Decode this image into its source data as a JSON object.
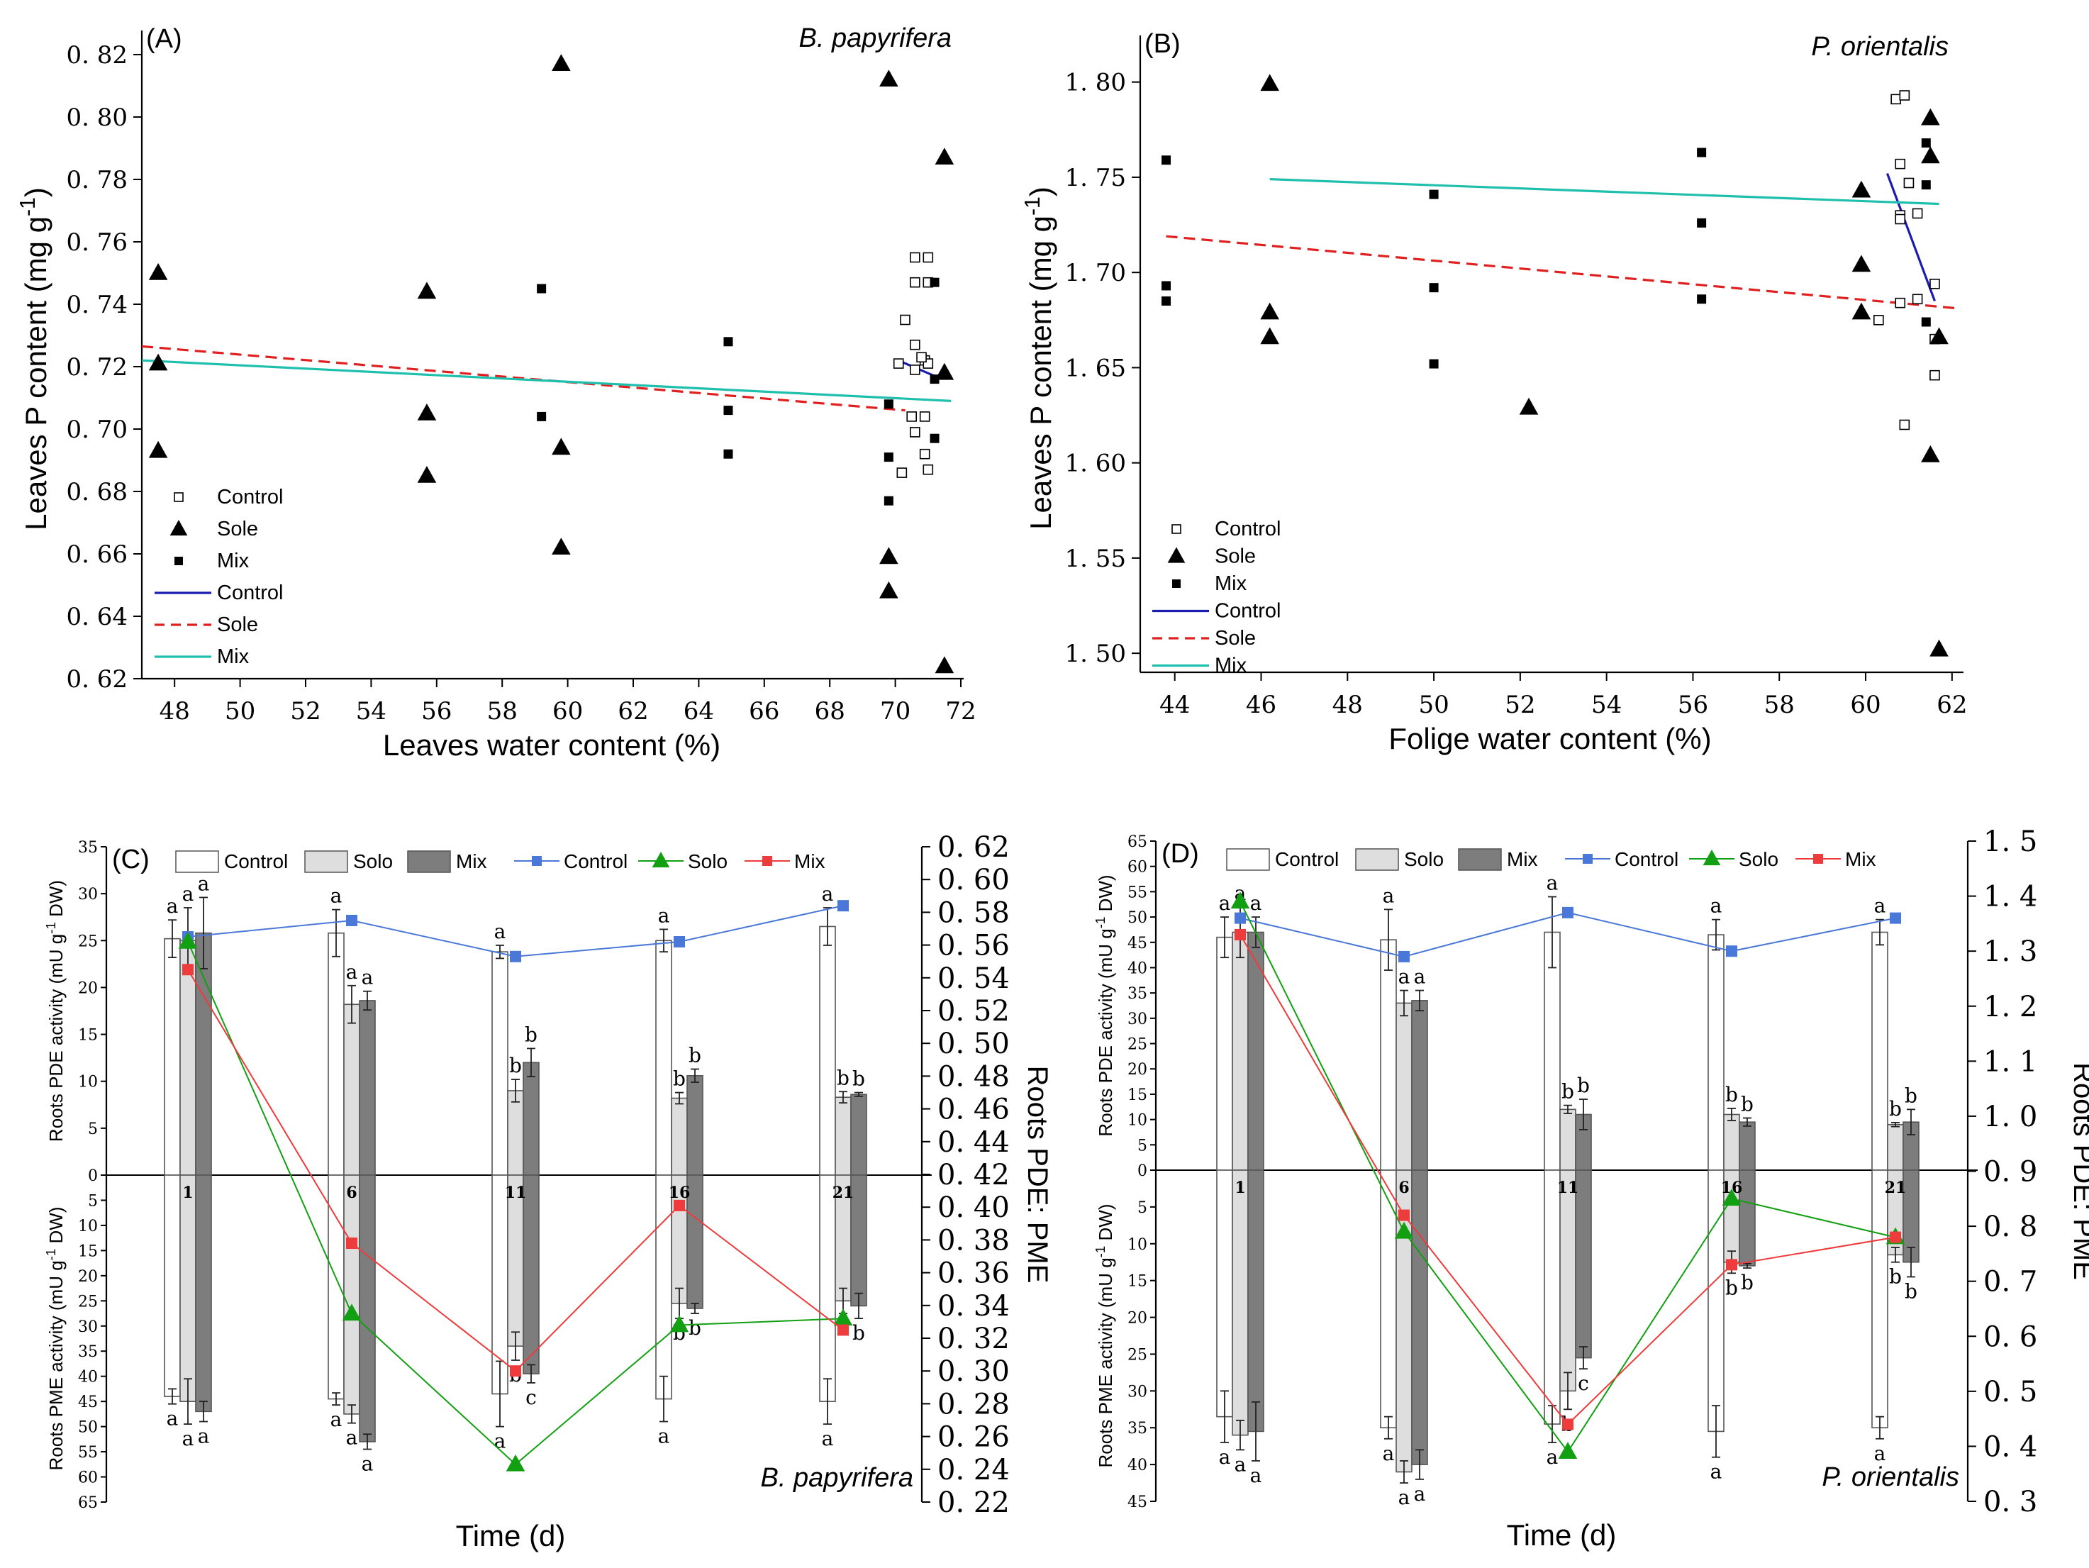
{
  "chart_data": [
    {
      "id": "A",
      "type": "scatter",
      "panel_label": "(A)",
      "species": "B. papyrifera",
      "xlabel": "Leaves water content (%)",
      "ylabel": "Leaves P content (mg g",
      "ylabel_sup": "-1",
      "ylabel_close": ")",
      "xlim": [
        47,
        72
      ],
      "ylim": [
        0.62,
        0.825
      ],
      "xticks": [
        48,
        50,
        52,
        54,
        56,
        58,
        60,
        62,
        64,
        66,
        68,
        70,
        72
      ],
      "yticks": [
        0.62,
        0.64,
        0.66,
        0.68,
        0.7,
        0.72,
        0.74,
        0.76,
        0.78,
        0.8,
        0.82
      ],
      "ytick_labels": [
        "0. 62",
        "0. 64",
        "0. 66",
        "0. 68",
        "0. 70",
        "0. 72",
        "0. 74",
        "0. 76",
        "0. 78",
        "0. 80",
        "0. 82"
      ],
      "legend": [
        "Control",
        "Sole",
        "Mix",
        "Control",
        "Sole",
        "Mix"
      ],
      "series": [
        {
          "name": "Control",
          "marker": "open-square",
          "points": [
            [
              70.1,
              0.721
            ],
            [
              70.3,
              0.735
            ],
            [
              70.6,
              0.755
            ],
            [
              71.0,
              0.755
            ],
            [
              70.6,
              0.747
            ],
            [
              71.0,
              0.747
            ],
            [
              70.6,
              0.727
            ],
            [
              70.9,
              0.722
            ],
            [
              71.0,
              0.721
            ],
            [
              70.6,
              0.719
            ],
            [
              70.2,
              0.686
            ],
            [
              70.5,
              0.704
            ],
            [
              70.9,
              0.704
            ],
            [
              70.6,
              0.699
            ],
            [
              70.9,
              0.692
            ],
            [
              71.0,
              0.687
            ],
            [
              70.8,
              0.723
            ]
          ]
        },
        {
          "name": "Sole",
          "marker": "triangle",
          "points": [
            [
              47.5,
              0.75
            ],
            [
              47.5,
              0.721
            ],
            [
              47.5,
              0.693
            ],
            [
              55.7,
              0.744
            ],
            [
              55.7,
              0.705
            ],
            [
              55.7,
              0.685
            ],
            [
              59.8,
              0.817
            ],
            [
              59.8,
              0.694
            ],
            [
              59.8,
              0.662
            ],
            [
              69.8,
              0.812
            ],
            [
              69.8,
              0.659
            ],
            [
              69.8,
              0.648
            ],
            [
              71.5,
              0.787
            ],
            [
              71.5,
              0.718
            ],
            [
              71.5,
              0.624
            ]
          ]
        },
        {
          "name": "Mix",
          "marker": "square",
          "points": [
            [
              59.2,
              0.745
            ],
            [
              59.2,
              0.704
            ],
            [
              64.9,
              0.728
            ],
            [
              64.9,
              0.706
            ],
            [
              64.9,
              0.692
            ],
            [
              69.8,
              0.708
            ],
            [
              69.8,
              0.691
            ],
            [
              69.8,
              0.677
            ],
            [
              71.2,
              0.747
            ],
            [
              71.2,
              0.716
            ],
            [
              71.2,
              0.697
            ]
          ]
        }
      ],
      "fits": [
        {
          "name": "Control",
          "color": "#1c1cb0",
          "dash": "solid",
          "x": [
            70.2,
            71.2
          ],
          "y": [
            0.7215,
            0.717
          ]
        },
        {
          "name": "Sole",
          "color": "#e02020",
          "dash": "dashed",
          "x": [
            47.0,
            70.3
          ],
          "y": [
            0.7265,
            0.706
          ]
        },
        {
          "name": "Mix",
          "color": "#1fbfae",
          "dash": "solid",
          "x": [
            47.0,
            71.7
          ],
          "y": [
            0.722,
            0.709
          ]
        }
      ]
    },
    {
      "id": "B",
      "type": "scatter",
      "panel_label": "(B)",
      "species": "P. orientalis",
      "xlabel": "Folige water content (%)",
      "ylabel": "Leaves P content (mg g",
      "ylabel_sup": "-1",
      "ylabel_close": ")",
      "xlim": [
        43.2,
        62.2
      ],
      "ylim": [
        1.49,
        1.82
      ],
      "xticks": [
        44,
        46,
        48,
        50,
        52,
        54,
        56,
        58,
        60,
        62
      ],
      "yticks": [
        1.5,
        1.55,
        1.6,
        1.65,
        1.7,
        1.75,
        1.8
      ],
      "ytick_labels": [
        "1. 50",
        "1. 55",
        "1. 60",
        "1. 65",
        "1. 70",
        "1. 75",
        "1. 80"
      ],
      "legend": [
        "Control",
        "Sole",
        "Mix",
        "Control",
        "Sole",
        "Mix"
      ],
      "series": [
        {
          "name": "Control",
          "marker": "open-square",
          "points": [
            [
              60.7,
              1.791
            ],
            [
              60.9,
              1.793
            ],
            [
              60.8,
              1.757
            ],
            [
              61.0,
              1.747
            ],
            [
              60.8,
              1.73
            ],
            [
              60.8,
              1.728
            ],
            [
              61.2,
              1.731
            ],
            [
              60.3,
              1.675
            ],
            [
              60.8,
              1.684
            ],
            [
              61.2,
              1.686
            ],
            [
              61.6,
              1.694
            ],
            [
              61.6,
              1.665
            ],
            [
              61.6,
              1.646
            ],
            [
              60.9,
              1.62
            ]
          ]
        },
        {
          "name": "Sole",
          "marker": "triangle",
          "points": [
            [
              46.2,
              1.799
            ],
            [
              46.2,
              1.679
            ],
            [
              46.2,
              1.666
            ],
            [
              52.2,
              1.629
            ],
            [
              59.9,
              1.743
            ],
            [
              59.9,
              1.704
            ],
            [
              59.9,
              1.679
            ],
            [
              61.5,
              1.781
            ],
            [
              61.5,
              1.761
            ],
            [
              61.5,
              1.604
            ],
            [
              61.7,
              1.666
            ],
            [
              61.7,
              1.502
            ]
          ]
        },
        {
          "name": "Mix",
          "marker": "square",
          "points": [
            [
              43.8,
              1.759
            ],
            [
              43.8,
              1.693
            ],
            [
              43.8,
              1.685
            ],
            [
              50.0,
              1.741
            ],
            [
              50.0,
              1.692
            ],
            [
              50.0,
              1.652
            ],
            [
              56.2,
              1.763
            ],
            [
              56.2,
              1.726
            ],
            [
              56.2,
              1.686
            ],
            [
              61.4,
              1.768
            ],
            [
              61.4,
              1.746
            ],
            [
              61.4,
              1.674
            ]
          ]
        }
      ],
      "fits": [
        {
          "name": "Control",
          "color": "#1c1cb0",
          "dash": "solid",
          "x": [
            60.5,
            61.6
          ],
          "y": [
            1.752,
            1.685
          ]
        },
        {
          "name": "Sole",
          "color": "#e02020",
          "dash": "dashed",
          "x": [
            43.8,
            62.2
          ],
          "y": [
            1.719,
            1.681
          ]
        },
        {
          "name": "Mix",
          "color": "#1fbfae",
          "dash": "solid",
          "x": [
            46.2,
            61.7
          ],
          "y": [
            1.749,
            1.736
          ]
        }
      ]
    },
    {
      "id": "C",
      "type": "bar",
      "panel_label": "(C)",
      "species": "B. papyrifera",
      "xlabel": "Time (d)",
      "ylabel_top": "Roots PDE activity (mU g",
      "ylabel_bottom": "Roots PME activity (mU g",
      "ylabel_sup": "-1",
      "ylabel_close": " DW)",
      "ylabel_right": "Roots PDE: PME",
      "categories": [
        "1",
        "6",
        "11",
        "16",
        "21"
      ],
      "pde_lim": 35,
      "pme_lim": 65,
      "pde_ticks": [
        0,
        5,
        10,
        15,
        20,
        25,
        30,
        35
      ],
      "pme_ticks": [
        5,
        10,
        15,
        20,
        25,
        30,
        35,
        40,
        45,
        50,
        55,
        60,
        65
      ],
      "right_lim": [
        0.22,
        0.62
      ],
      "right_ticks": [
        0.22,
        0.24,
        0.26,
        0.28,
        0.3,
        0.32,
        0.34,
        0.36,
        0.38,
        0.4,
        0.42,
        0.44,
        0.46,
        0.48,
        0.5,
        0.52,
        0.54,
        0.56,
        0.58,
        0.6,
        0.62
      ],
      "right_tick_labels": [
        "0. 22",
        "0. 24",
        "0. 26",
        "0. 28",
        "0. 30",
        "0. 32",
        "0. 34",
        "0. 36",
        "0. 38",
        "0. 40",
        "0. 42",
        "0. 44",
        "0. 46",
        "0. 48",
        "0. 50",
        "0. 52",
        "0. 54",
        "0. 56",
        "0. 58",
        "0. 60",
        "0. 62"
      ],
      "legend_bars": [
        "Control",
        "Solo",
        "Mix"
      ],
      "legend_lines": [
        "Control",
        "Solo",
        "Mix"
      ],
      "pde": {
        "Control": {
          "values": [
            25.2,
            25.8,
            23.8,
            25.0,
            26.5
          ],
          "errors": [
            2.0,
            2.5,
            0.7,
            1.2,
            2.0
          ],
          "letters": [
            "a",
            "a",
            "a",
            "a",
            "a"
          ]
        },
        "Solo": {
          "values": [
            25.0,
            18.2,
            9.0,
            8.2,
            8.3
          ],
          "errors": [
            3.5,
            2.0,
            1.2,
            0.6,
            0.6
          ],
          "letters": [
            "a",
            "a",
            "b",
            "b",
            "b"
          ]
        },
        "Mix": {
          "values": [
            25.8,
            18.6,
            12.0,
            10.6,
            8.6
          ],
          "errors": [
            3.8,
            1.0,
            1.5,
            0.7,
            0.2
          ],
          "letters": [
            "a",
            "a",
            "b",
            "b",
            "b"
          ]
        }
      },
      "pme": {
        "Control": {
          "values": [
            44.0,
            44.5,
            43.5,
            44.5,
            45.0
          ],
          "errors": [
            1.5,
            1.2,
            6.5,
            4.5,
            4.5
          ],
          "letters": [
            "a",
            "a",
            "a",
            "a",
            "a"
          ]
        },
        "Solo": {
          "values": [
            45.0,
            47.5,
            34.0,
            25.5,
            25.0
          ],
          "errors": [
            4.5,
            1.8,
            2.8,
            3.0,
            2.5
          ],
          "letters": [
            "a",
            "a",
            "b",
            "b",
            "b"
          ]
        },
        "Mix": {
          "values": [
            47.0,
            53.0,
            39.5,
            26.5,
            26.0
          ],
          "errors": [
            2.0,
            1.5,
            1.8,
            1.0,
            2.5
          ],
          "letters": [
            "a",
            "a",
            "c",
            "b",
            "b"
          ]
        }
      },
      "ratio": {
        "Control": {
          "color": "#4a78d8",
          "marker": "square",
          "values": [
            0.565,
            0.575,
            0.553,
            0.562,
            0.584
          ]
        },
        "Solo": {
          "color": "#12a012",
          "marker": "triangle",
          "values": [
            0.562,
            0.335,
            0.243,
            0.328,
            0.332
          ]
        },
        "Mix": {
          "color": "#ee3b3b",
          "marker": "square",
          "values": [
            0.545,
            0.378,
            0.3,
            0.401,
            0.325
          ]
        }
      }
    },
    {
      "id": "D",
      "type": "bar",
      "panel_label": "(D)",
      "species": "P. orientalis",
      "xlabel": "Time (d)",
      "ylabel_top": "Roots PDE activity (mU g",
      "ylabel_bottom": "Roots PME activity (mU g",
      "ylabel_sup": "-1",
      "ylabel_close": " DW)",
      "ylabel_right": "Roots PDE: PME",
      "categories": [
        "1",
        "6",
        "11",
        "16",
        "21"
      ],
      "pde_lim": 65,
      "pme_lim": 45,
      "pde_ticks": [
        0,
        5,
        10,
        15,
        20,
        25,
        30,
        35,
        40,
        45,
        50,
        55,
        60,
        65
      ],
      "pme_ticks": [
        5,
        10,
        15,
        20,
        25,
        30,
        35,
        40,
        45
      ],
      "right_lim": [
        0.3,
        1.5
      ],
      "right_ticks": [
        0.3,
        0.4,
        0.5,
        0.6,
        0.7,
        0.8,
        0.9,
        1.0,
        1.1,
        1.2,
        1.3,
        1.4,
        1.5
      ],
      "right_tick_labels": [
        "0. 3",
        "0. 4",
        "0. 5",
        "0. 6",
        "0. 7",
        "0. 8",
        "0. 9",
        "1. 0",
        "1. 1",
        "1. 2",
        "1. 3",
        "1. 4",
        "1. 5"
      ],
      "legend_bars": [
        "Control",
        "Solo",
        "Mix"
      ],
      "legend_lines": [
        "Control",
        "Solo",
        "Mix"
      ],
      "pde": {
        "Control": {
          "values": [
            46.0,
            45.5,
            47.0,
            46.5,
            47.0
          ],
          "errors": [
            4.0,
            6.0,
            7.0,
            3.0,
            2.5
          ],
          "letters": [
            "a",
            "a",
            "a",
            "a",
            "a"
          ]
        },
        "Solo": {
          "values": [
            47.0,
            33.0,
            12.0,
            11.0,
            9.0
          ],
          "errors": [
            5.0,
            2.5,
            0.8,
            1.2,
            0.4
          ],
          "letters": [
            "a",
            "a",
            "b",
            "b",
            "b"
          ]
        },
        "Mix": {
          "values": [
            47.0,
            33.5,
            11.0,
            9.5,
            9.5
          ],
          "errors": [
            3.0,
            2.0,
            3.0,
            0.8,
            2.5
          ],
          "letters": [
            "a",
            "a",
            "b",
            "b",
            "b"
          ]
        }
      },
      "pme": {
        "Control": {
          "values": [
            33.5,
            35.0,
            34.5,
            35.5,
            35.0
          ],
          "errors": [
            3.5,
            1.5,
            2.5,
            3.5,
            1.5
          ],
          "letters": [
            "a",
            "a",
            "a",
            "a",
            "a"
          ]
        },
        "Solo": {
          "values": [
            36.0,
            41.0,
            30.0,
            12.5,
            11.5
          ],
          "errors": [
            2.0,
            1.5,
            2.5,
            1.5,
            1.0
          ],
          "letters": [
            "a",
            "a",
            "b",
            "b",
            "b"
          ]
        },
        "Mix": {
          "values": [
            35.5,
            40.0,
            25.5,
            13.0,
            12.5
          ],
          "errors": [
            4.0,
            2.0,
            1.5,
            0.3,
            2.0
          ],
          "letters": [
            "a",
            "a",
            "c",
            "b",
            "b"
          ]
        }
      },
      "ratio": {
        "Control": {
          "color": "#4a78d8",
          "marker": "square",
          "values": [
            1.36,
            1.29,
            1.37,
            1.3,
            1.36
          ]
        },
        "Solo": {
          "color": "#12a012",
          "marker": "triangle",
          "values": [
            1.39,
            0.79,
            0.39,
            0.85,
            0.78
          ]
        },
        "Mix": {
          "color": "#ee3b3b",
          "marker": "square",
          "values": [
            1.33,
            0.82,
            0.44,
            0.73,
            0.78
          ]
        }
      }
    }
  ]
}
